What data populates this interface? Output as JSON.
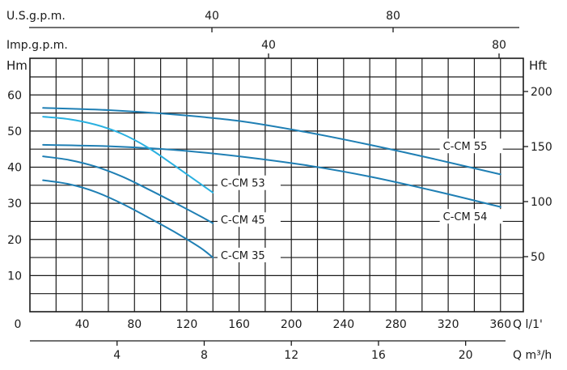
{
  "chart_data": {
    "type": "line",
    "title": "",
    "xlabel": "Q l/1'",
    "ylabel": "Hm",
    "xlim": [
      0,
      380
    ],
    "ylim": [
      0,
      70
    ],
    "grid": true,
    "x_ticks": [
      0,
      40,
      80,
      120,
      160,
      200,
      240,
      280,
      320,
      360
    ],
    "y_ticks": [
      10,
      20,
      30,
      40,
      50,
      60
    ],
    "right_axis": {
      "label": "Hft",
      "ticks": [
        {
          "value": 50,
          "label": "50"
        },
        {
          "value": 100,
          "label": "100"
        },
        {
          "value": 150,
          "label": "150"
        },
        {
          "value": 200,
          "label": "200"
        }
      ]
    },
    "secondary_x_axes": [
      {
        "label": "U.S.g.p.m.",
        "ticks": [
          {
            "value": 40,
            "label": "40"
          },
          {
            "value": 80,
            "label": "80"
          }
        ]
      },
      {
        "label": "Imp.g.p.m.",
        "ticks": [
          {
            "value": 40,
            "label": "40"
          },
          {
            "value": 80,
            "label": "80"
          }
        ]
      },
      {
        "label": "Q m³/h",
        "ticks": [
          {
            "value": 4,
            "label": "4"
          },
          {
            "value": 8,
            "label": "8"
          },
          {
            "value": 12,
            "label": "12"
          },
          {
            "value": 16,
            "label": "16"
          },
          {
            "value": 20,
            "label": "20"
          }
        ]
      }
    ],
    "series": [
      {
        "name": "C-CM 55",
        "color": "#1f7fb4",
        "x": [
          10,
          60,
          110,
          160,
          210,
          260,
          310,
          360
        ],
        "y": [
          56.4,
          55.8,
          54.6,
          52.8,
          49.8,
          46.2,
          42.2,
          38.0
        ]
      },
      {
        "name": "C-CM 54",
        "color": "#1f7fb4",
        "x": [
          10,
          60,
          110,
          160,
          210,
          260,
          310,
          360
        ],
        "y": [
          46.2,
          45.8,
          44.8,
          43.0,
          40.6,
          37.4,
          33.4,
          29.0
        ]
      },
      {
        "name": "C-CM 53",
        "color": "#29b0e0",
        "x": [
          10,
          30,
          50,
          70,
          90,
          110,
          130,
          140
        ],
        "y": [
          54.0,
          53.3,
          51.8,
          49.3,
          45.5,
          40.6,
          35.5,
          33.0
        ]
      },
      {
        "name": "C-CM 45",
        "color": "#1f7fb4",
        "x": [
          10,
          30,
          50,
          70,
          90,
          110,
          130,
          140
        ],
        "y": [
          43.0,
          42.0,
          40.2,
          37.5,
          34.0,
          30.3,
          26.5,
          24.5
        ]
      },
      {
        "name": "C-CM 35",
        "color": "#1f7fb4",
        "x": [
          10,
          30,
          50,
          70,
          90,
          110,
          130,
          140
        ],
        "y": [
          36.4,
          35.3,
          33.2,
          30.0,
          26.2,
          22.2,
          17.8,
          15.0
        ]
      }
    ]
  }
}
